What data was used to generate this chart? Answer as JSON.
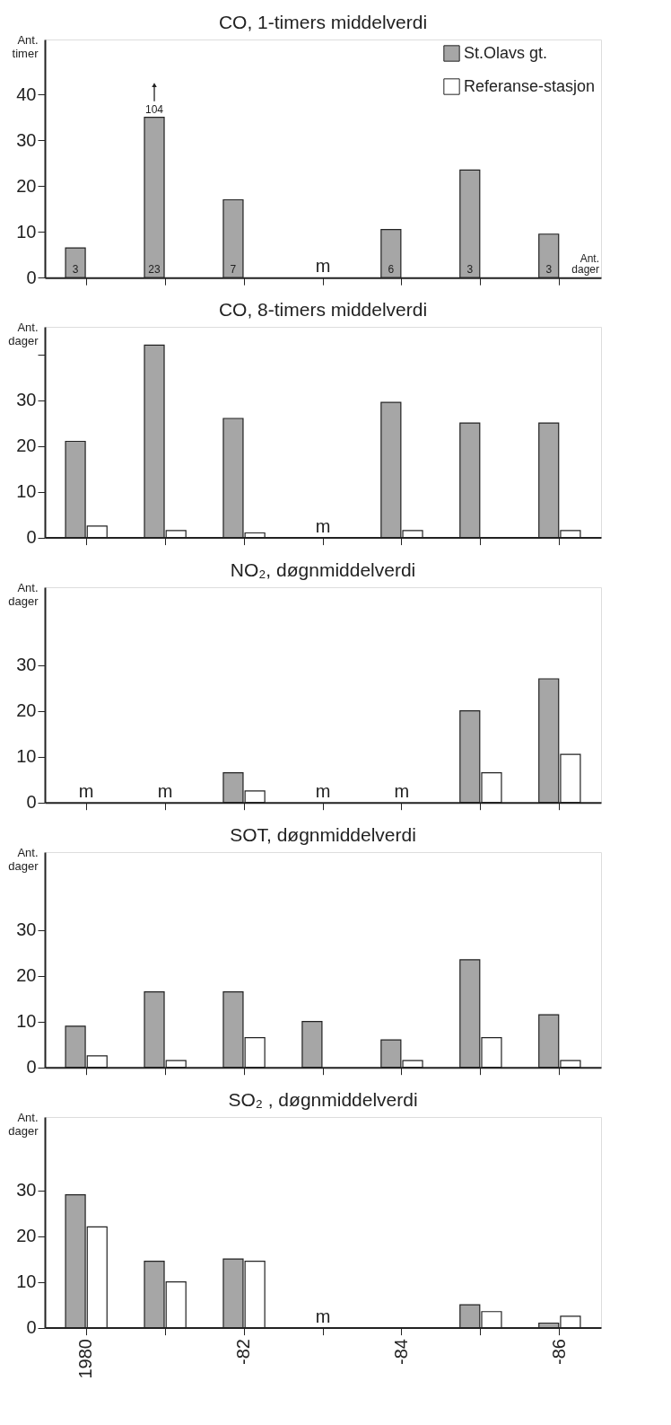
{
  "chart_data": [
    {
      "type": "bar",
      "title": "CO, 1-timers middelverdi",
      "ylabel": "Ant. timer",
      "categories": [
        "1980",
        null,
        "-82",
        null,
        "-84",
        null,
        "-86"
      ],
      "ylim": [
        0,
        52
      ],
      "yticks": [
        0,
        10,
        20,
        30,
        40
      ],
      "grid": false,
      "legend": "top right",
      "tick_labels": "y",
      "series": [
        {
          "name": "St.Olavs gt.",
          "color": "#a6a6a6",
          "values": [
            6.5,
            35,
            17,
            null,
            10.5,
            23.5,
            9.5
          ]
        },
        {
          "name": "Referanse-stasjon",
          "color": "#ffffff",
          "values": [
            null,
            null,
            null,
            null,
            null,
            null,
            null
          ],
          "value_labels": [
            null,
            null,
            null,
            "m",
            null,
            null,
            null
          ]
        }
      ],
      "annotations": [
        {
          "text": "3",
          "y": 0
        },
        {
          "text": "23",
          "y": 0
        },
        {
          "text": "7",
          "y": 0
        },
        {
          "text": "6",
          "y": 0
        },
        {
          "text": "3",
          "y": 0
        },
        {
          "text": "3",
          "y": 0
        },
        {
          "text": "104",
          "y": 35
        },
        "Ant. dager"
      ]
    },
    {
      "type": "bar",
      "title": "CO, 8-timers middelverdi",
      "ylabel": "Ant. dager",
      "categories": [
        "1980",
        null,
        "-82",
        null,
        "-84",
        null,
        "-86"
      ],
      "ylim": [
        0,
        46
      ],
      "yticks": [
        0,
        10,
        20,
        30,
        {
          "value": 40,
          "label": null
        }
      ],
      "grid": false,
      "tick_labels": "y",
      "series": [
        {
          "color": "#a6a6a6",
          "values": [
            21,
            42,
            26,
            null,
            29.5,
            25,
            25
          ]
        },
        {
          "color": "#ffffff",
          "values": [
            2.5,
            1.5,
            1,
            null,
            1.5,
            null,
            1.5
          ],
          "value_labels": [
            null,
            null,
            null,
            "m",
            null,
            null,
            null
          ]
        }
      ]
    },
    {
      "type": "bar",
      "title": "NO₂, døgnmiddelverdi",
      "ylabel": "Ant. dager",
      "categories": [
        "1980",
        null,
        "-82",
        null,
        "-84",
        null,
        "-86"
      ],
      "ylim": [
        0,
        47
      ],
      "yticks": [
        0,
        10,
        20,
        30
      ],
      "grid": false,
      "tick_labels": "y",
      "series": [
        {
          "color": "#a6a6a6",
          "values": [
            null,
            null,
            6.5,
            null,
            null,
            20,
            27
          ]
        },
        {
          "color": "#ffffff",
          "values": [
            null,
            null,
            2.5,
            null,
            null,
            6.5,
            10.5
          ],
          "value_labels": [
            "m",
            "m",
            null,
            "m",
            "m",
            null,
            null
          ]
        }
      ]
    },
    {
      "type": "bar",
      "title": "SOT, døgnmiddelverdi",
      "ylabel": "Ant. dager",
      "categories": [
        "1980",
        null,
        "-82",
        null,
        "-84",
        null,
        "-86"
      ],
      "ylim": [
        0,
        47
      ],
      "yticks": [
        0,
        10,
        20,
        30
      ],
      "grid": false,
      "tick_labels": "y",
      "series": [
        {
          "color": "#a6a6a6",
          "values": [
            9,
            16.5,
            16.5,
            10,
            6,
            23.5,
            11.5
          ]
        },
        {
          "color": "#ffffff",
          "values": [
            2.5,
            1.5,
            6.5,
            null,
            1.5,
            6.5,
            1.5
          ]
        }
      ]
    },
    {
      "type": "bar",
      "title": "SO₂ , døgnmiddelverdi",
      "ylabel": "Ant. dager",
      "categories": [
        "1980",
        null,
        "-82",
        null,
        "-84",
        null,
        "-86"
      ],
      "ylim": [
        0,
        46
      ],
      "yticks": [
        0,
        10,
        20,
        30
      ],
      "grid": false,
      "series": [
        {
          "color": "#a6a6a6",
          "values": [
            29,
            14.5,
            15,
            null,
            null,
            5,
            1
          ]
        },
        {
          "color": "#ffffff",
          "values": [
            22,
            10,
            14.5,
            null,
            null,
            3.5,
            2.5
          ],
          "value_labels": [
            null,
            null,
            null,
            "m",
            null,
            null,
            null
          ]
        }
      ]
    }
  ]
}
